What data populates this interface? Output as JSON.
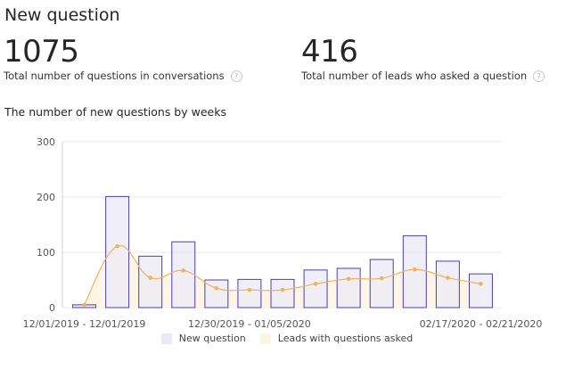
{
  "page": {
    "title": "New question"
  },
  "metrics": [
    {
      "value": "1075",
      "label": "Total number of questions in conversations"
    },
    {
      "value": "416",
      "label": "Total number of leads who asked a question"
    }
  ],
  "help_icon_glyph": "?",
  "chart_title": "The number of new questions by weeks",
  "colors": {
    "bar_fill": "#ebe9f7",
    "bar_stroke": "#4a3eb5",
    "line": "#f0b25a",
    "area": "#fdf5e3",
    "grid": "#e8e8e8",
    "axis_text": "#555555"
  },
  "chart_data": {
    "type": "bar",
    "title": "The number of new questions by weeks",
    "ylim": [
      0,
      300
    ],
    "yticks": [
      0,
      100,
      200,
      300
    ],
    "grid": true,
    "legend_position": "bottom",
    "x_tick_labels": [
      {
        "index": 0,
        "label": "12/01/2019 - 12/01/2019"
      },
      {
        "index": 5,
        "label": "12/30/2019 - 01/05/2020"
      },
      {
        "index": 12,
        "label": "02/17/2020 - 02/21/2020"
      }
    ],
    "series": [
      {
        "name": "New question",
        "type": "bar",
        "values": [
          5,
          201,
          93,
          119,
          50,
          51,
          51,
          68,
          71,
          87,
          130,
          84,
          61
        ]
      },
      {
        "name": "Leads with questions asked",
        "type": "area",
        "values": [
          5,
          111,
          54,
          67,
          35,
          32,
          32,
          43,
          52,
          53,
          69,
          54,
          43
        ]
      }
    ]
  }
}
